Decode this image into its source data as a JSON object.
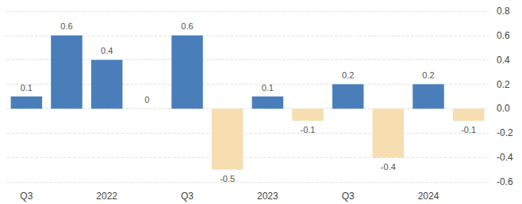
{
  "chart_data": {
    "type": "bar",
    "categories": [
      "Q3",
      null,
      "2022",
      null,
      "Q3",
      null,
      "2023",
      null,
      "Q3",
      null,
      "2024",
      null
    ],
    "values": [
      0.1,
      0.6,
      0.4,
      0,
      0.6,
      -0.5,
      0.1,
      -0.1,
      0.2,
      -0.4,
      0.2,
      -0.1
    ],
    "colors": [
      "#4a7ebb",
      "#4a7ebb",
      "#4a7ebb",
      "#4a7ebb",
      "#4a7ebb",
      "#f6deb1",
      "#4a7ebb",
      "#f6deb1",
      "#4a7ebb",
      "#f6deb1",
      "#4a7ebb",
      "#f6deb1"
    ],
    "ylim": [
      -0.6,
      0.8
    ],
    "yticks": [
      -0.6,
      -0.4,
      -0.2,
      {
        "value": 0,
        "label": "0.0"
      },
      0.2,
      0.4,
      0.6,
      0.8
    ],
    "grid": true,
    "data_labels": true
  }
}
